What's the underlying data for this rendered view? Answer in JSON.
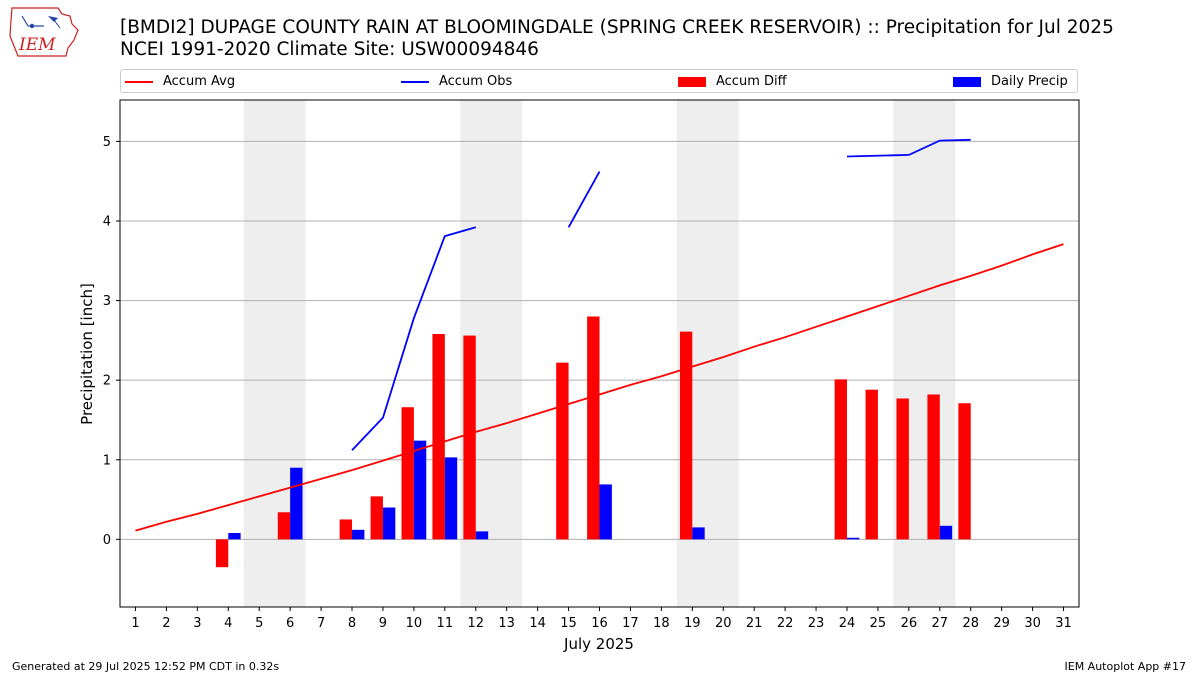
{
  "header": {
    "title_line1": "[BMDI2] DUPAGE COUNTY RAIN AT BLOOMINGDALE (SPRING CREEK RESERVOIR) :: Precipitation for Jul 2025",
    "title_line2": "NCEI 1991-2020 Climate Site: USW00094846",
    "logo_text": "IEM"
  },
  "legend": [
    {
      "label": "Accum Avg",
      "kind": "line",
      "color": "#ff0000"
    },
    {
      "label": "Accum Obs",
      "kind": "line",
      "color": "#0000ff"
    },
    {
      "label": "Accum Diff",
      "kind": "box",
      "color": "#ff0000"
    },
    {
      "label": "Daily Precip",
      "kind": "box",
      "color": "#0000ff"
    }
  ],
  "footer": {
    "left": "Generated at 29 Jul 2025 12:52 PM CDT in 0.32s",
    "right": "IEM Autoplot App #17"
  },
  "chart_data": {
    "type": "bar",
    "xlabel": "July 2025",
    "ylabel": "Precipitation [inch]",
    "x": [
      1,
      2,
      3,
      4,
      5,
      6,
      7,
      8,
      9,
      10,
      11,
      12,
      13,
      14,
      15,
      16,
      17,
      18,
      19,
      20,
      21,
      22,
      23,
      24,
      25,
      26,
      27,
      28,
      29,
      30,
      31
    ],
    "xticks": [
      "1",
      "2",
      "3",
      "4",
      "5",
      "6",
      "7",
      "8",
      "9",
      "10",
      "11",
      "12",
      "13",
      "14",
      "15",
      "16",
      "17",
      "18",
      "19",
      "20",
      "21",
      "22",
      "23",
      "24",
      "25",
      "26",
      "27",
      "28",
      "29",
      "30",
      "31"
    ],
    "yticks": [
      "0",
      "1",
      "2",
      "3",
      "4",
      "5"
    ],
    "ylim": [
      -0.85,
      5.52
    ],
    "xlim": [
      0.5,
      31.5
    ],
    "grid": "horizontal",
    "weekend_shading": [
      [
        4.5,
        6.5
      ],
      [
        11.5,
        13.5
      ],
      [
        18.5,
        20.5
      ],
      [
        25.5,
        27.5
      ]
    ],
    "weekend_color": "#eeeeee",
    "series": [
      {
        "name": "Accum Avg",
        "kind": "line",
        "color": "#ff0000",
        "x": [
          1,
          2,
          3,
          4,
          5,
          6,
          7,
          8,
          9,
          10,
          11,
          12,
          13,
          14,
          15,
          16,
          17,
          18,
          19,
          20,
          21,
          22,
          23,
          24,
          25,
          26,
          27,
          28,
          29,
          30,
          31
        ],
        "values": [
          0.11,
          0.22,
          0.32,
          0.43,
          0.54,
          0.65,
          0.76,
          0.87,
          0.99,
          1.11,
          1.23,
          1.35,
          1.46,
          1.58,
          1.7,
          1.82,
          1.94,
          2.05,
          2.17,
          2.29,
          2.42,
          2.54,
          2.67,
          2.8,
          2.93,
          3.06,
          3.19,
          3.31,
          3.44,
          3.58,
          3.71
        ]
      },
      {
        "name": "Accum Obs",
        "kind": "line",
        "color": "#0000ff",
        "segments": [
          {
            "x": [
              8,
              9,
              10,
              11,
              12
            ],
            "values": [
              1.12,
              1.53,
              2.78,
              3.81,
              3.92
            ]
          },
          {
            "x": [
              15,
              16
            ],
            "values": [
              3.92,
              4.62
            ]
          },
          {
            "x": [
              24,
              26,
              27,
              28
            ],
            "values": [
              4.81,
              4.83,
              5.01,
              5.02
            ]
          }
        ]
      },
      {
        "name": "Accum Diff",
        "kind": "bar",
        "color": "#ff0000",
        "x": [
          4,
          6,
          8,
          9,
          10,
          11,
          12,
          15,
          16,
          19,
          24,
          25,
          26,
          27,
          28
        ],
        "values": [
          -0.35,
          0.34,
          0.25,
          0.54,
          1.66,
          2.58,
          2.56,
          2.22,
          2.8,
          2.61,
          2.01,
          1.88,
          1.77,
          1.82,
          1.71
        ]
      },
      {
        "name": "Daily Precip",
        "kind": "bar",
        "color": "#0000ff",
        "x": [
          4,
          6,
          8,
          9,
          10,
          11,
          12,
          16,
          19,
          24,
          27
        ],
        "values": [
          0.08,
          0.9,
          0.12,
          0.4,
          1.24,
          1.03,
          0.1,
          0.69,
          0.15,
          0.02,
          0.17
        ]
      }
    ]
  }
}
